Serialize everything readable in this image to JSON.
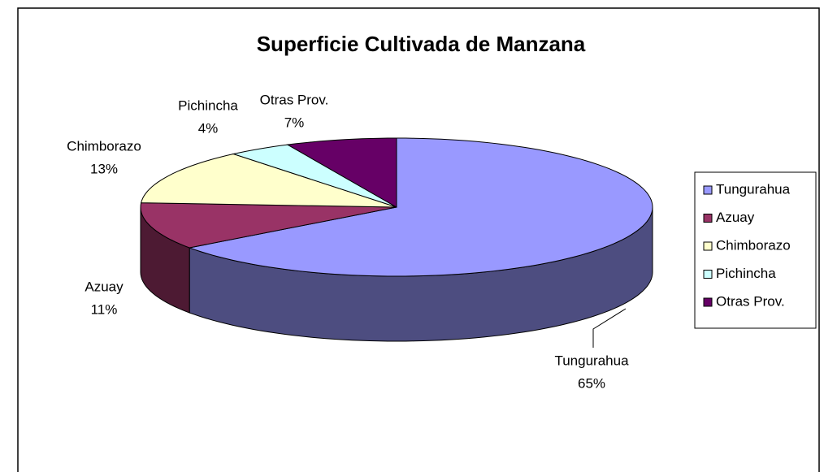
{
  "chart_data": {
    "type": "pie3d",
    "title": "Superficie Cultivada de Manzana",
    "categories": [
      "Tungurahua",
      "Azuay",
      "Chimborazo",
      "Pichincha",
      "Otras Prov."
    ],
    "values": [
      65,
      11,
      13,
      4,
      7
    ],
    "value_labels": [
      "65%",
      "11%",
      "13%",
      "4%",
      "7%"
    ],
    "colors": [
      "#9999ff",
      "#993366",
      "#ffffcc",
      "#ccffff",
      "#660066"
    ],
    "legend": "right"
  }
}
